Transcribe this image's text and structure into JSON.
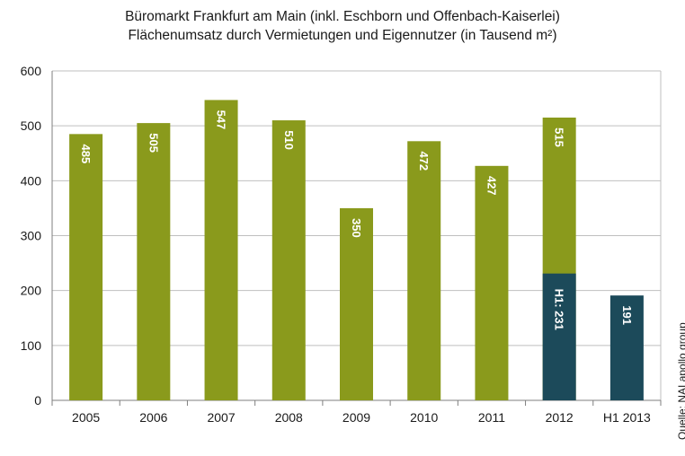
{
  "title_line1": "Büromarkt Frankfurt  am Main (inkl. Eschborn und Offenbach-Kaiserlei)",
  "title_line2": "Flächenumsatz  durch Vermietungen und Eigennutzer  (in Tausend m²)",
  "source": "Quelle: NAI  apollo group",
  "colors": {
    "green": "#8a9a1c",
    "navy": "#1c4a5a",
    "grid": "#bfbfbf",
    "axis": "#7f7f7f"
  },
  "chart_data": {
    "type": "bar",
    "title": "Büromarkt Frankfurt  am Main (inkl. Eschborn und Offenbach-Kaiserlei) Flächenumsatz  durch Vermietungen und Eigennutzer  (in Tausend m²)",
    "categories": [
      "2005",
      "2006",
      "2007",
      "2008",
      "2009",
      "2010",
      "2011",
      "2012",
      "H1 2013"
    ],
    "bars": [
      {
        "category": "2005",
        "value": 485,
        "label": "485",
        "color": "green"
      },
      {
        "category": "2006",
        "value": 505,
        "label": "505",
        "color": "green"
      },
      {
        "category": "2007",
        "value": 547,
        "label": "547",
        "color": "green"
      },
      {
        "category": "2008",
        "value": 510,
        "label": "510",
        "color": "green"
      },
      {
        "category": "2009",
        "value": 350,
        "label": "350",
        "color": "green"
      },
      {
        "category": "2010",
        "value": 472,
        "label": "472",
        "color": "green"
      },
      {
        "category": "2011",
        "value": 427,
        "label": "427",
        "color": "green"
      },
      {
        "category": "2012",
        "value": 515,
        "label": "515",
        "color": "green",
        "h1_value": 231,
        "h1_label": "H1: 231",
        "h1_color": "navy"
      },
      {
        "category": "H1 2013",
        "value": 191,
        "label": "191",
        "color": "navy"
      }
    ],
    "ylim": [
      0,
      600
    ],
    "yticks": [
      "0",
      "100",
      "200",
      "300",
      "400",
      "500",
      "600"
    ],
    "grid": true,
    "xlabel": "",
    "ylabel": ""
  }
}
